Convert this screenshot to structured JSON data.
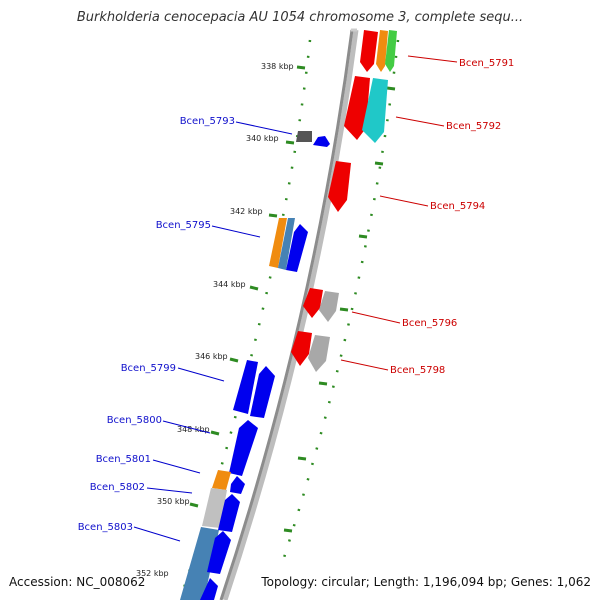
{
  "title": "Burkholderia cenocepacia AU 1054 chromosome 3, complete sequ...",
  "footer": {
    "accession": "Accession: NC_008062",
    "summary": "Topology: circular; Length: 1,196,094 bp; Genes: 1,062"
  },
  "colors": {
    "forward": "#0000ee",
    "reverse": "#ee0000",
    "forward_label": "#1010cc",
    "reverse_label": "#cc0000",
    "ruler": "#2e8b22",
    "backbone": "#8c8c8c",
    "orange": "#f08c10",
    "green": "#44cc44",
    "cyan": "#20c8c8",
    "steel": "#4682b4",
    "gray": "#a0a0a0",
    "darkgray": "#555555"
  },
  "ruler_labels": [
    "338 kbp",
    "340 kbp",
    "342 kbp",
    "344 kbp",
    "346 kbp",
    "348 kbp",
    "350 kbp",
    "352 kbp"
  ],
  "gene_labels": {
    "forward": [
      "Bcen_5793",
      "Bcen_5795",
      "Bcen_5799",
      "Bcen_5800",
      "Bcen_5801",
      "Bcen_5802",
      "Bcen_5803"
    ],
    "reverse": [
      "Bcen_5791",
      "Bcen_5792",
      "Bcen_5794",
      "Bcen_5796",
      "Bcen_5798"
    ]
  }
}
